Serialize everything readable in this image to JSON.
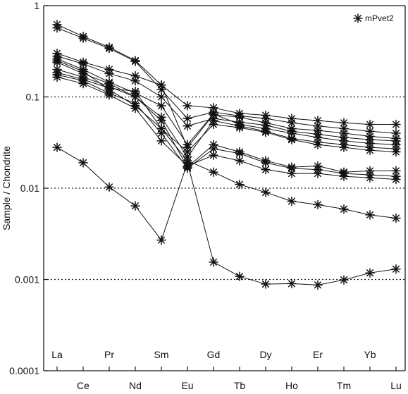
{
  "chart_data": {
    "type": "line",
    "title": "",
    "xlabel": "",
    "ylabel": "Sample / Chondrite",
    "y_scale": "log",
    "ylim": [
      0.0001,
      1
    ],
    "y_ticks": [
      {
        "value": 1,
        "label": "1"
      },
      {
        "value": 0.1,
        "label": "0.1"
      },
      {
        "value": 0.01,
        "label": "0.01"
      },
      {
        "value": 0.001,
        "label": "0.001"
      },
      {
        "value": 0.0001,
        "label": "0.0001"
      }
    ],
    "dotted_gridlines": [
      0.1,
      0.01,
      0.001
    ],
    "categories": [
      "La",
      "Ce",
      "Pr",
      "Nd",
      "Sm",
      "Eu",
      "Gd",
      "Tb",
      "Dy",
      "Ho",
      "Er",
      "Tm",
      "Yb",
      "Lu"
    ],
    "upper_labels": [
      "La",
      "Pr",
      "Sm",
      "Gd",
      "Dy",
      "Er",
      "Yb"
    ],
    "lower_labels": [
      "Ce",
      "Nd",
      "Eu",
      "Tb",
      "Ho",
      "Tm",
      "Lu"
    ],
    "legend": {
      "position": "top-right",
      "label": "mPvet2",
      "marker": "asterisk"
    },
    "series": [
      {
        "values": [
          0.62,
          0.46,
          0.35,
          0.25,
          0.135,
          0.08,
          0.076,
          0.066,
          0.063,
          0.058,
          0.055,
          0.052,
          0.05,
          0.05
        ]
      },
      {
        "values": [
          0.57,
          0.44,
          0.34,
          0.245,
          0.12,
          0.058,
          0.068,
          0.062,
          0.058,
          0.052,
          0.048,
          0.045,
          0.042,
          0.04
        ]
      },
      {
        "values": [
          0.3,
          0.24,
          0.2,
          0.17,
          0.135,
          0.028,
          0.064,
          0.06,
          0.052,
          0.045,
          0.043,
          0.04,
          0.037,
          0.035
        ]
      },
      {
        "values": [
          0.28,
          0.23,
          0.18,
          0.15,
          0.1,
          0.048,
          0.058,
          0.053,
          0.049,
          0.042,
          0.039,
          0.036,
          0.034,
          0.033
        ]
      },
      {
        "values": [
          0.26,
          0.2,
          0.145,
          0.11,
          0.08,
          0.03,
          0.065,
          0.05,
          0.045,
          0.04,
          0.036,
          0.033,
          0.031,
          0.03
        ]
      },
      {
        "values": [
          0.24,
          0.18,
          0.14,
          0.1,
          0.06,
          0.022,
          0.055,
          0.048,
          0.042,
          0.035,
          0.032,
          0.03,
          0.028,
          0.027
        ]
      },
      {
        "values": [
          0.185,
          0.155,
          0.125,
          0.115,
          0.045,
          0.025,
          0.05,
          0.046,
          0.041,
          0.034,
          0.03,
          0.028,
          0.026,
          0.025
        ]
      },
      {
        "values": [
          0.2,
          0.165,
          0.13,
          0.1,
          0.055,
          0.017,
          0.03,
          0.025,
          0.02,
          0.017,
          0.0175,
          0.015,
          0.0155,
          0.0155
        ]
      },
      {
        "values": [
          0.175,
          0.15,
          0.11,
          0.085,
          0.04,
          0.0165,
          0.027,
          0.024,
          0.019,
          0.0165,
          0.016,
          0.0145,
          0.014,
          0.0135
        ]
      },
      {
        "values": [
          0.165,
          0.14,
          0.105,
          0.075,
          0.033,
          0.0175,
          0.023,
          0.02,
          0.016,
          0.0145,
          0.0145,
          0.0135,
          0.013,
          0.0125
        ]
      },
      {
        "values": [
          0.25,
          0.19,
          0.12,
          0.08,
          0.045,
          0.02,
          0.015,
          0.011,
          0.009,
          0.0072,
          0.0066,
          0.0059,
          0.0051,
          0.0047
        ]
      },
      {
        "values": [
          0.028,
          0.019,
          0.0103,
          0.0064,
          0.0027,
          0.019,
          0.00155,
          0.00108,
          0.00089,
          0.0009,
          0.00087,
          0.00099,
          0.00118,
          0.0013
        ]
      }
    ]
  }
}
